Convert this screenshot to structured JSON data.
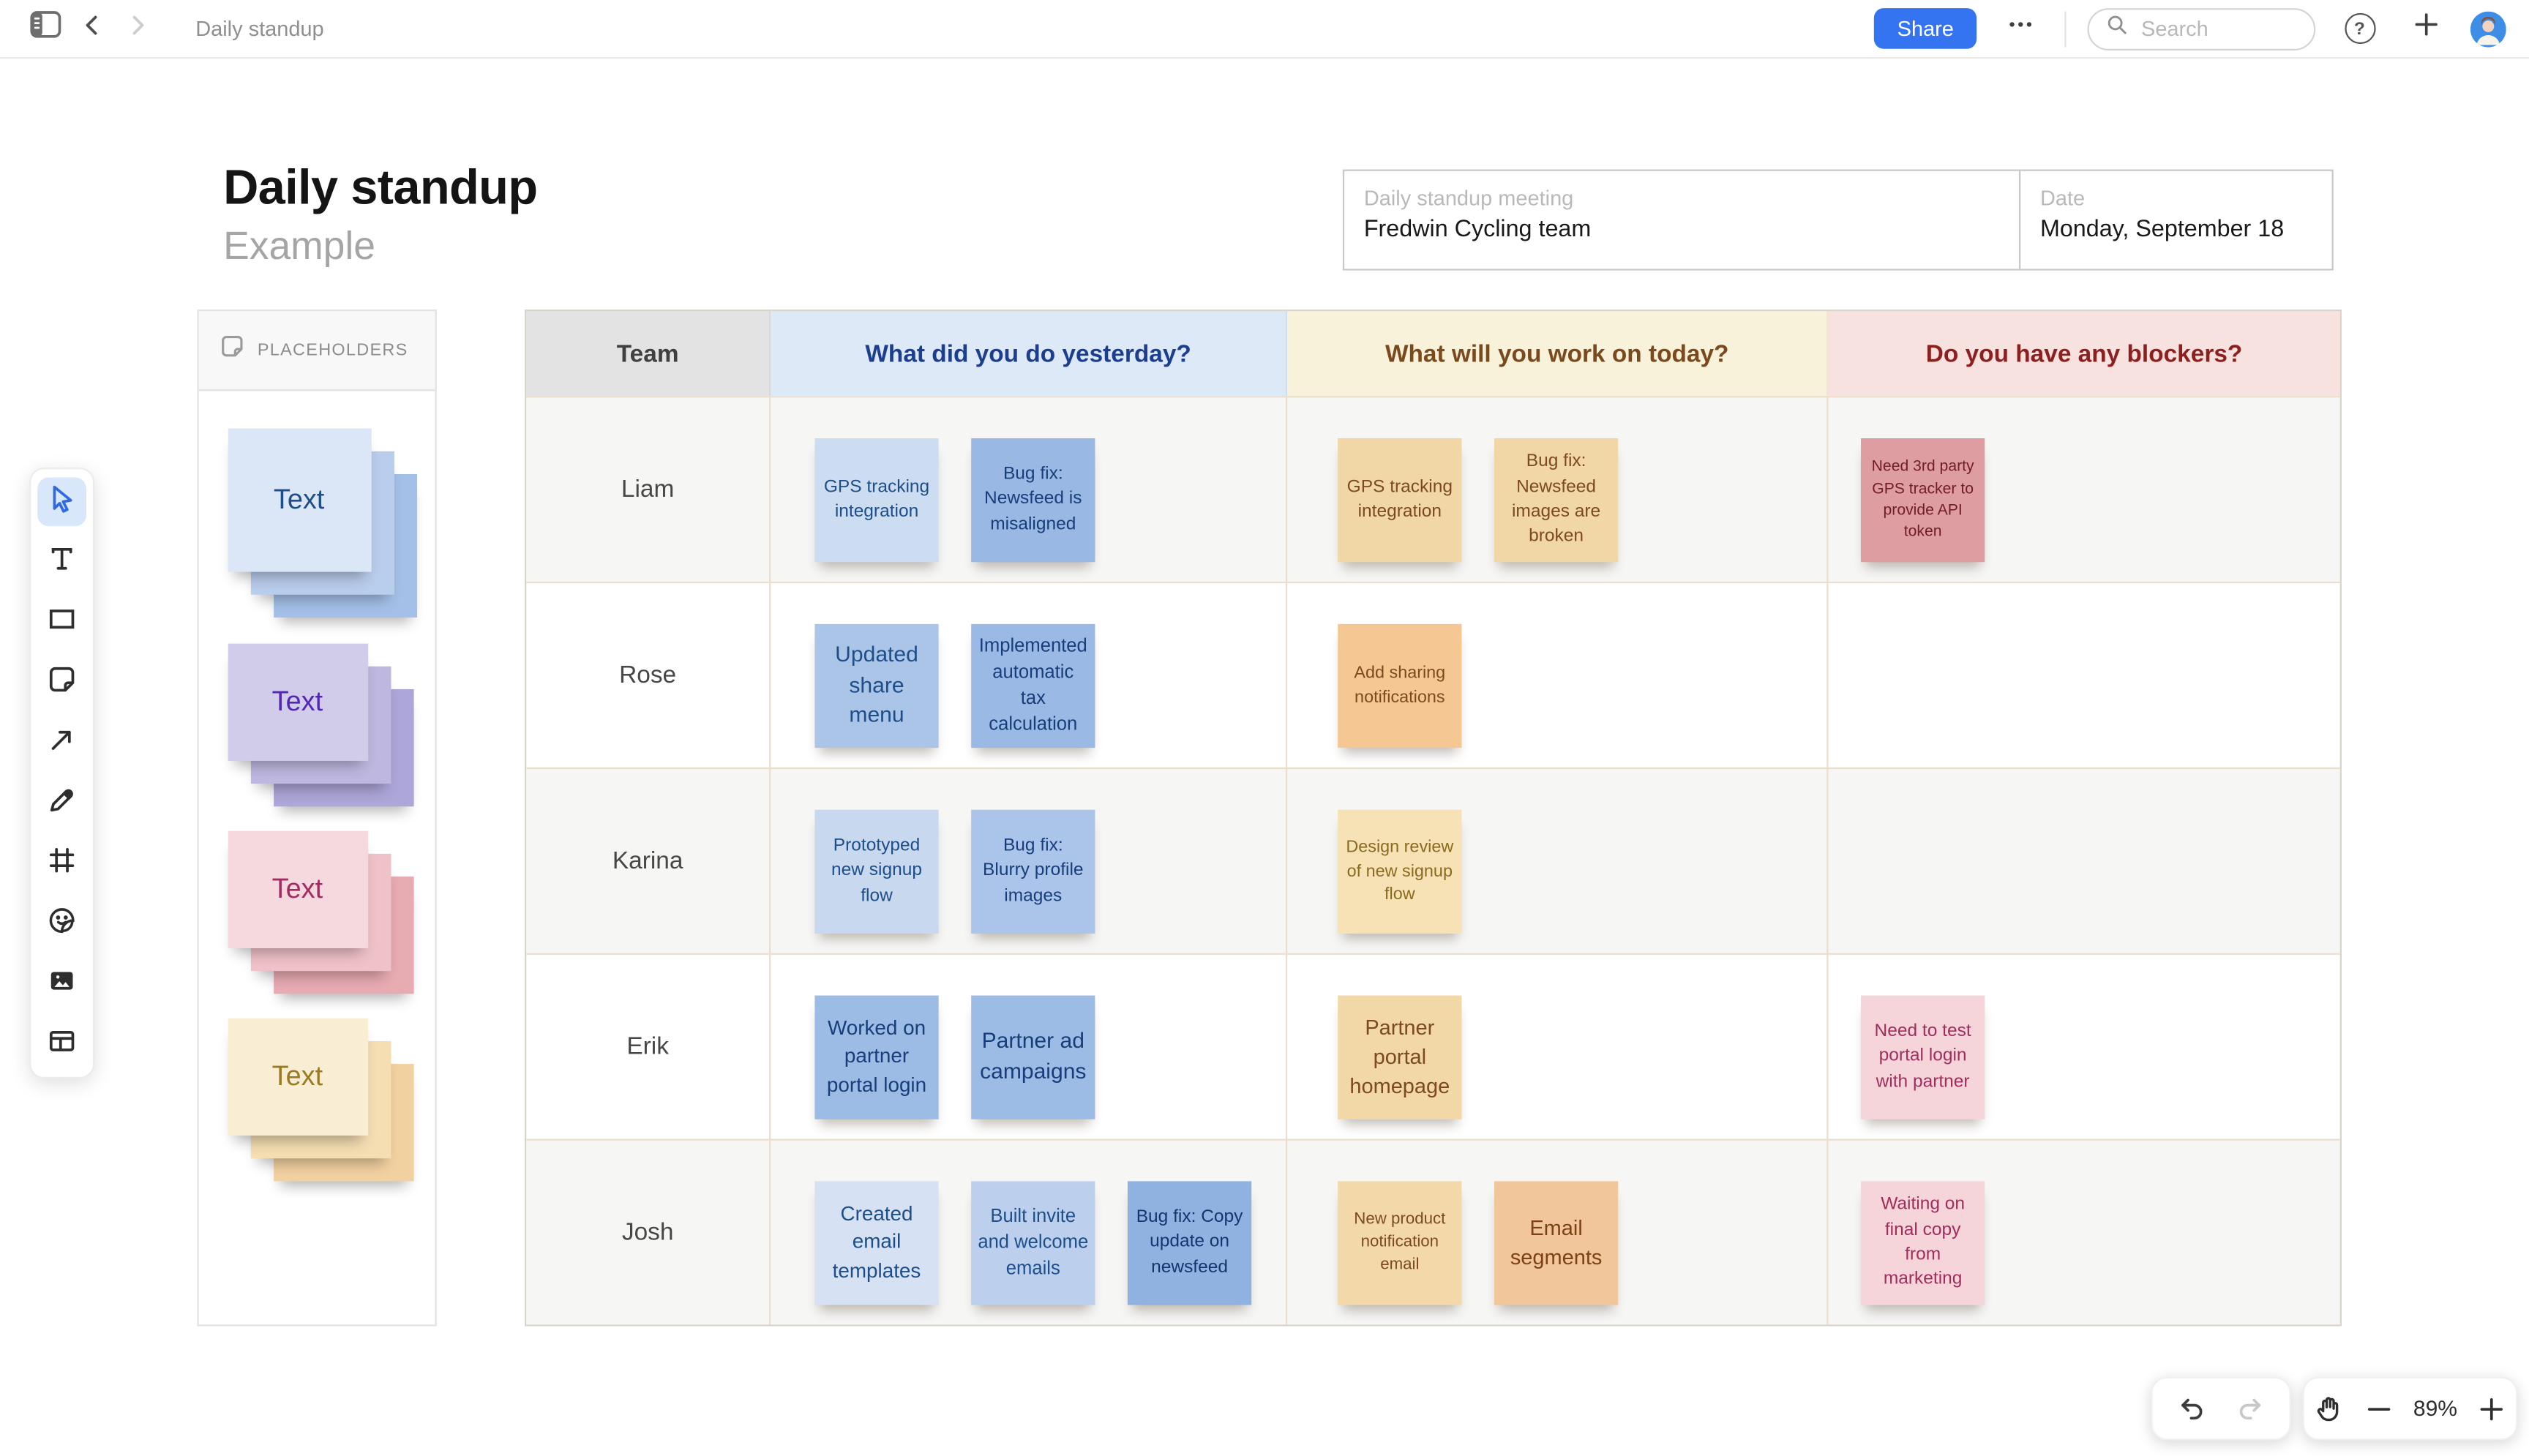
{
  "topbar": {
    "document_title": "Daily standup",
    "share_label": "Share",
    "search_placeholder": "Search"
  },
  "board": {
    "title": "Daily standup",
    "subtitle": "Example",
    "meeting_card": {
      "name_label": "Daily standup meeting",
      "name_value": "Fredwin Cycling team",
      "date_label": "Date",
      "date_value": "Monday, September 18"
    }
  },
  "placeholders_panel": {
    "title": "PLACEHOLDERS",
    "stacks": [
      {
        "label": "Text",
        "shape": "square",
        "front": "#dbe6f6",
        "mid": "#b9cdec",
        "back": "#a4c0e8",
        "fg": "#1d4e89"
      },
      {
        "label": "Text",
        "shape": "wide",
        "front": "#d0cce9",
        "mid": "#beb8e0",
        "back": "#ada6d8",
        "fg": "#5226b8"
      },
      {
        "label": "Text",
        "shape": "wide",
        "front": "#f6d9de",
        "mid": "#efc2c8",
        "back": "#e7abb2",
        "fg": "#a52a62"
      },
      {
        "label": "Text",
        "shape": "wide",
        "front": "#f9edd3",
        "mid": "#f5deb2",
        "back": "#f2d1a0",
        "fg": "#9a7b22"
      }
    ]
  },
  "toolbar": {
    "tools": [
      "select",
      "text",
      "shape",
      "sticky-note",
      "arrow",
      "pen",
      "frame",
      "sticker",
      "image",
      "table"
    ],
    "active_tool": "select"
  },
  "table": {
    "columns": [
      {
        "label": "Team",
        "bg": "#e3e3e3",
        "fg": "#404040"
      },
      {
        "label": "What did you do yesterday?",
        "bg": "#dde9f7",
        "fg": "#1c3e8f"
      },
      {
        "label": "What will you work on today?",
        "bg": "#f9f2da",
        "fg": "#7a4a1e"
      },
      {
        "label": "Do you have any blockers?",
        "bg": "#f7e2e0",
        "fg": "#8d1f1e"
      }
    ],
    "rows": [
      {
        "team": "Liam",
        "yesterday": [
          {
            "text": "GPS tracking integration",
            "bg": "#cdddf1",
            "fg": "#1d4e89",
            "fs": 11
          },
          {
            "text": "Bug fix: Newsfeed is misaligned",
            "bg": "#99b9e4",
            "fg": "#173d7a",
            "fs": 11
          }
        ],
        "today": [
          {
            "text": "GPS tracking integration",
            "bg": "#f2d7a6",
            "fg": "#7c4a1e",
            "fs": 11
          },
          {
            "text": "Bug fix: Newsfeed images are broken",
            "bg": "#f2d7a6",
            "fg": "#7c4a1e",
            "fs": 11
          }
        ],
        "blockers": [
          {
            "text": "Need 3rd party GPS tracker to provide API token",
            "bg": "#de9da0",
            "fg": "#721d26",
            "fs": 9.5
          }
        ]
      },
      {
        "team": "Rose",
        "yesterday": [
          {
            "text": "Updated share menu",
            "bg": "#abc5e9",
            "fg": "#1d4e89",
            "fs": 13.5
          },
          {
            "text": "Implemented automatic tax calculation",
            "bg": "#9ab9e4",
            "fg": "#173d7a",
            "fs": 11.5
          }
        ],
        "today": [
          {
            "text": "Add sharing notifications",
            "bg": "#f5c893",
            "fg": "#7c4a1e",
            "fs": 10.5
          }
        ],
        "blockers": []
      },
      {
        "team": "Karina",
        "yesterday": [
          {
            "text": "Prototyped new signup flow",
            "bg": "#c8d8ef",
            "fg": "#1d4e89",
            "fs": 11
          },
          {
            "text": "Bug fix: Blurry profile images",
            "bg": "#aac5e9",
            "fg": "#173d7a",
            "fs": 11
          }
        ],
        "today": [
          {
            "text": "Design review of new signup flow",
            "bg": "#f6e2b5",
            "fg": "#8a6a1f",
            "fs": 10.5
          }
        ],
        "blockers": []
      },
      {
        "team": "Erik",
        "yesterday": [
          {
            "text": "Worked on partner portal login",
            "bg": "#9dbce5",
            "fg": "#173d7a",
            "fs": 12.5
          },
          {
            "text": "Partner ad campaigns",
            "bg": "#9dbce5",
            "fg": "#173d7a",
            "fs": 13.5
          }
        ],
        "today": [
          {
            "text": "Partner portal homepage",
            "bg": "#f2d8a7",
            "fg": "#7c4a1e",
            "fs": 13
          }
        ],
        "blockers": [
          {
            "text": "Need to test portal login with partner",
            "bg": "#f5d5da",
            "fg": "#a12c5e",
            "fs": 11
          }
        ]
      },
      {
        "team": "Josh",
        "yesterday": [
          {
            "text": "Created email templates",
            "bg": "#d6e1f3",
            "fg": "#1d4e89",
            "fs": 12.5
          },
          {
            "text": "Built invite and welcome emails",
            "bg": "#bccfed",
            "fg": "#1d4e89",
            "fs": 11.5
          },
          {
            "text": "Bug fix: Copy update on newsfeed",
            "bg": "#90b2e1",
            "fg": "#14366e",
            "fs": 11
          }
        ],
        "today": [
          {
            "text": "New product notification email",
            "bg": "#f3d9a9",
            "fg": "#7c4a1e",
            "fs": 10
          },
          {
            "text": "Email segments",
            "bg": "#f1c69b",
            "fg": "#7c4216",
            "fs": 13
          }
        ],
        "blockers": [
          {
            "text": "Waiting on final copy from marketing",
            "bg": "#f5d5da",
            "fg": "#a12c5e",
            "fs": 11
          }
        ]
      }
    ]
  },
  "footer": {
    "zoom_label": "89%"
  }
}
